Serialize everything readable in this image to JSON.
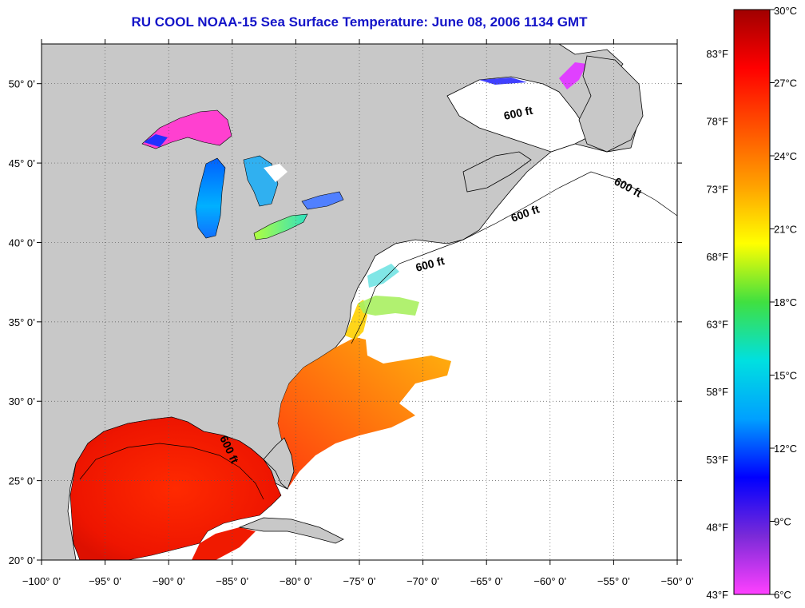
{
  "title": "RU COOL  NOAA-15  Sea Surface Temperature:  June 08, 2006 1134 GMT",
  "map": {
    "lon_range": [
      -100,
      -50
    ],
    "lat_range": [
      20,
      52.5
    ],
    "lon_ticks": [
      -100,
      -95,
      -90,
      -85,
      -80,
      -75,
      -70,
      -65,
      -60,
      -55,
      -50
    ],
    "lon_tick_labels": [
      "−100° 0’",
      "−95° 0’",
      "−90° 0’",
      "−85° 0’",
      "−80° 0’",
      "−75° 0’",
      "−70° 0’",
      "−65° 0’",
      "−60° 0’",
      "−55° 0’",
      "−50° 0’"
    ],
    "lat_ticks": [
      20,
      25,
      30,
      35,
      40,
      45,
      50
    ],
    "lat_tick_labels": [
      "20° 0’",
      "25° 0’",
      "30° 0’",
      "35° 0’",
      "40° 0’",
      "45° 0’",
      "50° 0’"
    ],
    "grid": "dotted",
    "land_color": "#c8c8c8",
    "ocean_color": "#ffffff",
    "contour_label": "600 ft"
  },
  "colorbar": {
    "celsius_labels": [
      "30°C",
      "27°C",
      "24°C",
      "21°C",
      "18°C",
      "15°C",
      "12°C",
      "9°C",
      "6°C"
    ],
    "fahrenheit_labels": [
      "83°F",
      "78°F",
      "73°F",
      "68°F",
      "63°F",
      "58°F",
      "53°F",
      "48°F",
      "43°F"
    ],
    "colors": [
      "#ff40ff",
      "#7a2ad8",
      "#0000ff",
      "#00a0ff",
      "#00e0e0",
      "#40e040",
      "#ffff00",
      "#ffa000",
      "#ff5000",
      "#ff0000",
      "#a00000"
    ]
  }
}
